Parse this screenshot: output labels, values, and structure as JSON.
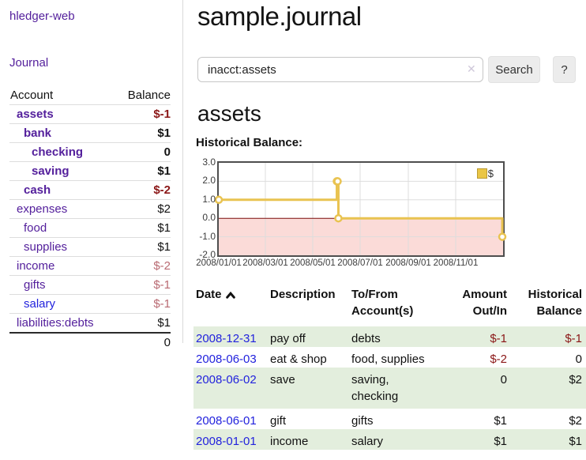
{
  "app_title": "hledger-web",
  "sidebar": {
    "journal_link": "Journal",
    "accounts": {
      "header": {
        "account": "Account",
        "balance": "Balance"
      },
      "rows": [
        {
          "name": "assets",
          "balance": "$-1"
        },
        {
          "name": "bank",
          "balance": "$1"
        },
        {
          "name": "checking",
          "balance": "0"
        },
        {
          "name": "saving",
          "balance": "$1"
        },
        {
          "name": "cash",
          "balance": "$-2"
        },
        {
          "name": "expenses",
          "balance": "$2"
        },
        {
          "name": "food",
          "balance": "$1"
        },
        {
          "name": "supplies",
          "balance": "$1"
        },
        {
          "name": "income",
          "balance": "$-2"
        },
        {
          "name": "gifts",
          "balance": "$-1"
        },
        {
          "name": "salary",
          "balance": "$-1"
        },
        {
          "name": "liabilities:debts",
          "balance": "$1"
        }
      ],
      "total": "0"
    }
  },
  "header": {
    "title": "sample.journal"
  },
  "search": {
    "value": "inacct:assets",
    "clear_icon": "✕",
    "search_button": "Search",
    "help_button": "?"
  },
  "account_page": {
    "heading": "assets",
    "chart_label": "Historical Balance:"
  },
  "chart_data": {
    "type": "line",
    "step": true,
    "title": "Historical Balance",
    "series": [
      {
        "name": "$",
        "color": "#e9c351",
        "points": [
          {
            "date": "2008-01-01",
            "value": 1
          },
          {
            "date": "2008-06-01",
            "value": 2
          },
          {
            "date": "2008-06-02",
            "value": 2
          },
          {
            "date": "2008-06-03",
            "value": 0
          },
          {
            "date": "2008-12-31",
            "value": -1
          }
        ]
      }
    ],
    "ylim": [
      -2,
      3
    ],
    "yticks": [
      3,
      2,
      1,
      0,
      -1,
      -2
    ],
    "xticks": [
      "2008/01/01",
      "2008/03/01",
      "2008/05/01",
      "2008/07/01",
      "2008/09/01",
      "2008/11/01"
    ],
    "legend_label": "$",
    "legend_position": "top-right",
    "grid": true,
    "negative_region_color": "#fbdbd8",
    "zero_line_color": "#7a0c0c"
  },
  "register": {
    "headers": {
      "date": "Date",
      "description": "Description",
      "tofrom": "To/From Account(s)",
      "amount": "Amount Out/In",
      "balance": "Historical Balance"
    },
    "rows": [
      {
        "date": "2008-12-31",
        "description": "pay off",
        "accounts": "debts",
        "amount": "$-1",
        "balance": "$-1"
      },
      {
        "date": "2008-06-03",
        "description": "eat & shop",
        "accounts": "food, supplies",
        "amount": "$-2",
        "balance": "0"
      },
      {
        "date": "2008-06-02",
        "description": "save",
        "accounts": "saving, checking",
        "amount": "0",
        "balance": "$2"
      },
      {
        "date": "2008-06-01",
        "description": "gift",
        "accounts": "gifts",
        "amount": "$1",
        "balance": "$2"
      },
      {
        "date": "2008-01-01",
        "description": "income",
        "accounts": "salary",
        "amount": "$1",
        "balance": "$1"
      }
    ]
  },
  "colors": {
    "link_purple": "#54209c",
    "link_blue": "#2222dd",
    "negative_strong": "#8b1717",
    "negative_soft": "#b96a72",
    "row_green": "#e3eedd",
    "chart_line": "#e9c351",
    "chart_negative_bg": "#fbdbd8",
    "zero_line": "#7a0c0c",
    "chart_border": "#4e4e4e"
  }
}
